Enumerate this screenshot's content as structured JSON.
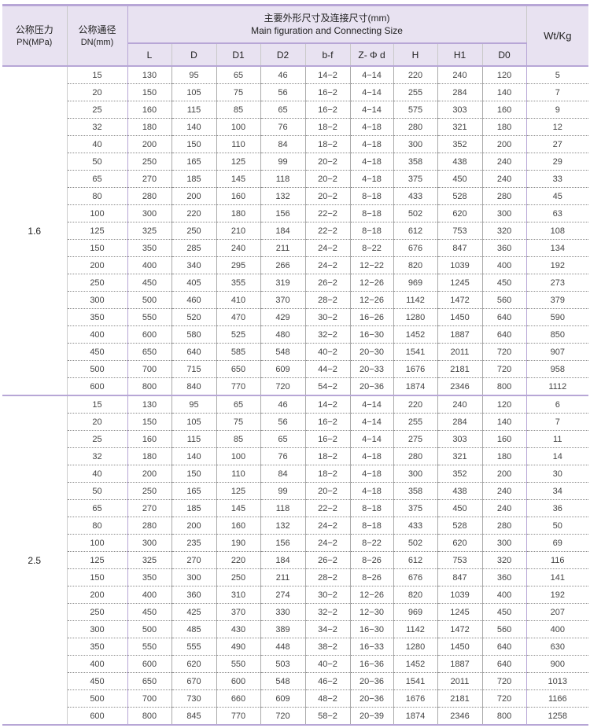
{
  "header": {
    "pn_cn": "公称压力",
    "pn_en": "PN(MPa)",
    "dn_cn": "公称通径",
    "dn_en": "DN(mm)",
    "main_cn": "主要外形尺寸及连接尺寸(mm)",
    "main_en": "Main figuration and Connecting Size",
    "weight": "Wt/Kg",
    "columns": [
      "L",
      "D",
      "D1",
      "D2",
      "b-f",
      "Z- Φ d",
      "H",
      "H1",
      "D0"
    ]
  },
  "groups": [
    {
      "pn": "1.6",
      "rows": [
        [
          "15",
          "130",
          "95",
          "65",
          "46",
          "14−2",
          "4−14",
          "220",
          "240",
          "120",
          "5"
        ],
        [
          "20",
          "150",
          "105",
          "75",
          "56",
          "16−2",
          "4−14",
          "255",
          "284",
          "140",
          "7"
        ],
        [
          "25",
          "160",
          "115",
          "85",
          "65",
          "16−2",
          "4−14",
          "575",
          "303",
          "160",
          "9"
        ],
        [
          "32",
          "180",
          "140",
          "100",
          "76",
          "18−2",
          "4−18",
          "280",
          "321",
          "180",
          "12"
        ],
        [
          "40",
          "200",
          "150",
          "110",
          "84",
          "18−2",
          "4−18",
          "300",
          "352",
          "200",
          "27"
        ],
        [
          "50",
          "250",
          "165",
          "125",
          "99",
          "20−2",
          "4−18",
          "358",
          "438",
          "240",
          "29"
        ],
        [
          "65",
          "270",
          "185",
          "145",
          "118",
          "20−2",
          "4−18",
          "375",
          "450",
          "240",
          "33"
        ],
        [
          "80",
          "280",
          "200",
          "160",
          "132",
          "20−2",
          "8−18",
          "433",
          "528",
          "280",
          "45"
        ],
        [
          "100",
          "300",
          "220",
          "180",
          "156",
          "22−2",
          "8−18",
          "502",
          "620",
          "300",
          "63"
        ],
        [
          "125",
          "325",
          "250",
          "210",
          "184",
          "22−2",
          "8−18",
          "612",
          "753",
          "320",
          "108"
        ],
        [
          "150",
          "350",
          "285",
          "240",
          "211",
          "24−2",
          "8−22",
          "676",
          "847",
          "360",
          "134"
        ],
        [
          "200",
          "400",
          "340",
          "295",
          "266",
          "24−2",
          "12−22",
          "820",
          "1039",
          "400",
          "192"
        ],
        [
          "250",
          "450",
          "405",
          "355",
          "319",
          "26−2",
          "12−26",
          "969",
          "1245",
          "450",
          "273"
        ],
        [
          "300",
          "500",
          "460",
          "410",
          "370",
          "28−2",
          "12−26",
          "1142",
          "1472",
          "560",
          "379"
        ],
        [
          "350",
          "550",
          "520",
          "470",
          "429",
          "30−2",
          "16−26",
          "1280",
          "1450",
          "640",
          "590"
        ],
        [
          "400",
          "600",
          "580",
          "525",
          "480",
          "32−2",
          "16−30",
          "1452",
          "1887",
          "640",
          "850"
        ],
        [
          "450",
          "650",
          "640",
          "585",
          "548",
          "40−2",
          "20−30",
          "1541",
          "2011",
          "720",
          "907"
        ],
        [
          "500",
          "700",
          "715",
          "650",
          "609",
          "44−2",
          "20−33",
          "1676",
          "2181",
          "720",
          "958"
        ],
        [
          "600",
          "800",
          "840",
          "770",
          "720",
          "54−2",
          "20−36",
          "1874",
          "2346",
          "800",
          "1112"
        ]
      ]
    },
    {
      "pn": "2.5",
      "rows": [
        [
          "15",
          "130",
          "95",
          "65",
          "46",
          "14−2",
          "4−14",
          "220",
          "240",
          "120",
          "6"
        ],
        [
          "20",
          "150",
          "105",
          "75",
          "56",
          "16−2",
          "4−14",
          "255",
          "284",
          "140",
          "7"
        ],
        [
          "25",
          "160",
          "115",
          "85",
          "65",
          "16−2",
          "4−14",
          "275",
          "303",
          "160",
          "11"
        ],
        [
          "32",
          "180",
          "140",
          "100",
          "76",
          "18−2",
          "4−18",
          "280",
          "321",
          "180",
          "14"
        ],
        [
          "40",
          "200",
          "150",
          "110",
          "84",
          "18−2",
          "4−18",
          "300",
          "352",
          "200",
          "30"
        ],
        [
          "50",
          "250",
          "165",
          "125",
          "99",
          "20−2",
          "4−18",
          "358",
          "438",
          "240",
          "34"
        ],
        [
          "65",
          "270",
          "185",
          "145",
          "118",
          "22−2",
          "8−18",
          "375",
          "450",
          "240",
          "36"
        ],
        [
          "80",
          "280",
          "200",
          "160",
          "132",
          "24−2",
          "8−18",
          "433",
          "528",
          "280",
          "50"
        ],
        [
          "100",
          "300",
          "235",
          "190",
          "156",
          "24−2",
          "8−22",
          "502",
          "620",
          "300",
          "69"
        ],
        [
          "125",
          "325",
          "270",
          "220",
          "184",
          "26−2",
          "8−26",
          "612",
          "753",
          "320",
          "116"
        ],
        [
          "150",
          "350",
          "300",
          "250",
          "211",
          "28−2",
          "8−26",
          "676",
          "847",
          "360",
          "141"
        ],
        [
          "200",
          "400",
          "360",
          "310",
          "274",
          "30−2",
          "12−26",
          "820",
          "1039",
          "400",
          "192"
        ],
        [
          "250",
          "450",
          "425",
          "370",
          "330",
          "32−2",
          "12−30",
          "969",
          "1245",
          "450",
          "207"
        ],
        [
          "300",
          "500",
          "485",
          "430",
          "389",
          "34−2",
          "16−30",
          "1142",
          "1472",
          "560",
          "400"
        ],
        [
          "350",
          "550",
          "555",
          "490",
          "448",
          "38−2",
          "16−33",
          "1280",
          "1450",
          "640",
          "630"
        ],
        [
          "400",
          "600",
          "620",
          "550",
          "503",
          "40−2",
          "16−36",
          "1452",
          "1887",
          "640",
          "900"
        ],
        [
          "450",
          "650",
          "670",
          "600",
          "548",
          "46−2",
          "20−36",
          "1541",
          "2011",
          "720",
          "1013"
        ],
        [
          "500",
          "700",
          "730",
          "660",
          "609",
          "48−2",
          "20−36",
          "1676",
          "2181",
          "720",
          "1166"
        ],
        [
          "600",
          "800",
          "845",
          "770",
          "720",
          "58−2",
          "20−39",
          "1874",
          "2346",
          "800",
          "1258"
        ]
      ]
    }
  ]
}
